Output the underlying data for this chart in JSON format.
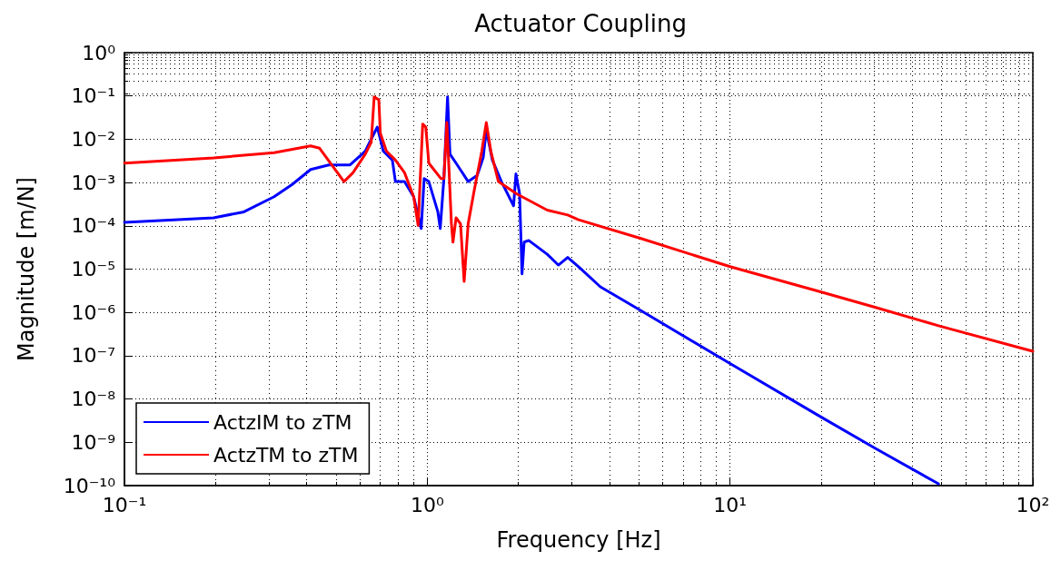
{
  "chart_data": {
    "type": "line",
    "title": "Actuator Coupling",
    "xlabel": "Frequency [Hz]",
    "ylabel": "Magnitude [m/N]",
    "log": "xy",
    "grid": true,
    "legend": "bottom left",
    "marker": "none",
    "line_style": "solid",
    "xlim": [
      0.1,
      100
    ],
    "ylim": [
      1e-10,
      1
    ],
    "xticks": [
      {
        "value": 0.1,
        "label": "10⁻¹"
      },
      {
        "value": 1,
        "label": "10⁰"
      },
      {
        "value": 10,
        "label": "10¹"
      },
      {
        "value": 100,
        "label": "10²"
      }
    ],
    "yticks": [
      {
        "value": 1e-10,
        "label": "10⁻¹⁰"
      },
      {
        "value": 1e-09,
        "label": "10⁻⁹"
      },
      {
        "value": 1e-08,
        "label": "10⁻⁸"
      },
      {
        "value": 1e-07,
        "label": "10⁻⁷"
      },
      {
        "value": 1e-06,
        "label": "10⁻⁶"
      },
      {
        "value": 1e-05,
        "label": "10⁻⁵"
      },
      {
        "value": 0.0001,
        "label": "10⁻⁴"
      },
      {
        "value": 0.001,
        "label": "10⁻³"
      },
      {
        "value": 0.01,
        "label": "10⁻²"
      },
      {
        "value": 0.1,
        "label": "10⁻¹"
      },
      {
        "value": 1,
        "label": "10⁰"
      }
    ],
    "series": [
      {
        "name": "ActzIM to zTM",
        "color": "#0000ff",
        "x": [
          0.1,
          0.197,
          0.248,
          0.312,
          0.358,
          0.412,
          0.473,
          0.556,
          0.624,
          0.668,
          0.684,
          0.716,
          0.767,
          0.785,
          0.841,
          0.902,
          0.955,
          0.977,
          1.012,
          1.084,
          1.104,
          1.135,
          1.167,
          1.189,
          1.245,
          1.365,
          1.462,
          1.531,
          1.567,
          1.641,
          1.758,
          1.928,
          1.963,
          2.018,
          2.056,
          2.089,
          2.163,
          2.49,
          2.71,
          2.91,
          3.16,
          3.73,
          5.08,
          10,
          19.9,
          30.1,
          48.8
        ],
        "values": [
          0.00012,
          0.000153,
          0.00021,
          0.00047,
          0.0009,
          0.002,
          0.00255,
          0.00255,
          0.0053,
          0.0138,
          0.0191,
          0.0053,
          0.0033,
          0.00105,
          0.00105,
          0.00047,
          8.7e-05,
          0.00124,
          0.00105,
          0.00021,
          8.7e-05,
          0.00124,
          0.095,
          0.0045,
          0.0028,
          0.00105,
          0.00146,
          0.0038,
          0.0163,
          0.0033,
          0.00105,
          0.00029,
          0.00158,
          0.00055,
          7.8e-06,
          4.2e-05,
          4.6e-05,
          2.2e-05,
          1.24e-05,
          1.87e-05,
          1.14e-05,
          3.9e-06,
          1.1e-06,
          6.6e-08,
          3.9e-09,
          7.3e-10,
          1.1e-10
        ]
      },
      {
        "name": "ActzTM to zTM",
        "color": "#ff0000",
        "x": [
          0.1,
          0.197,
          0.312,
          0.412,
          0.441,
          0.496,
          0.531,
          0.569,
          0.624,
          0.653,
          0.668,
          0.692,
          0.7,
          0.733,
          0.785,
          0.841,
          0.902,
          0.933,
          0.966,
          0.989,
          1.012,
          1.109,
          1.135,
          1.161,
          1.202,
          1.216,
          1.245,
          1.288,
          1.324,
          1.365,
          1.429,
          1.514,
          1.567,
          1.622,
          1.718,
          1.972,
          2.49,
          2.91,
          3.16,
          5.08,
          10,
          19.9,
          30.1,
          49.4,
          100
        ],
        "values": [
          0.0028,
          0.0037,
          0.0049,
          0.007,
          0.0062,
          0.002,
          0.00105,
          0.0017,
          0.0045,
          0.0085,
          0.095,
          0.081,
          0.0138,
          0.0053,
          0.0033,
          0.0017,
          0.00047,
          0.000102,
          0.0224,
          0.0191,
          0.0028,
          0.00124,
          0.00124,
          0.0243,
          0.000111,
          4.2e-05,
          0.000153,
          0.000111,
          5.2e-06,
          0.000111,
          0.00065,
          0.0053,
          0.0243,
          0.0053,
          0.00105,
          0.00055,
          0.00023,
          0.000178,
          0.000138,
          5.1e-05,
          1.14e-05,
          3e-06,
          1.32e-06,
          4.8e-07,
          1.27e-07
        ]
      }
    ]
  }
}
